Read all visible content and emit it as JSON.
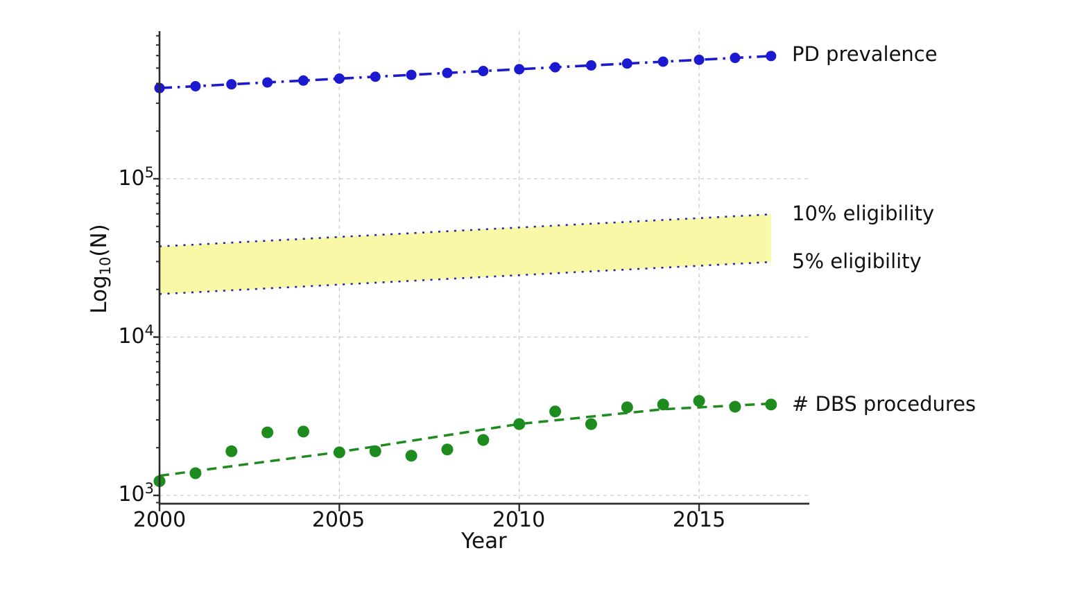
{
  "figure": {
    "x_axis_label": "Year",
    "y_axis_label": {
      "pre": "Log",
      "sub": "10",
      "post": "(N)"
    },
    "x_tick_labels": [
      "2000",
      "2005",
      "2010",
      "2015"
    ],
    "y_tick_labels": [
      {
        "base": "10",
        "exp": "5"
      },
      {
        "base": "10",
        "exp": "4"
      },
      {
        "base": "10",
        "exp": "3"
      }
    ],
    "annotations": {
      "pd": "PD prevalence",
      "elig10": "10% eligibility",
      "elig5": "5% eligibility",
      "dbs": "# DBS procedures"
    }
  },
  "colors": {
    "pd_line": "#1b1ad1",
    "band_fill": "#f8f8a6",
    "band_edge": "#24249c",
    "dbs_green": "#1e8b1e",
    "grid": "#c9c9c9",
    "axis": "#2b2b2b",
    "text": "#111111"
  },
  "chart_data": {
    "type": "line",
    "title": "",
    "xlabel": "Year",
    "ylabel": "Log10(N)",
    "y_scale": "log10",
    "xlim": [
      2000,
      2018.1
    ],
    "ylim": [
      880,
      850000
    ],
    "x_ticks": [
      2000,
      2005,
      2010,
      2015
    ],
    "y_ticks": [
      1000,
      10000,
      100000
    ],
    "grid": true,
    "legend_position": "right-margin-annotations",
    "x": [
      2000,
      2001,
      2002,
      2003,
      2004,
      2005,
      2006,
      2007,
      2008,
      2009,
      2010,
      2011,
      2012,
      2013,
      2014,
      2015,
      2016,
      2017
    ],
    "series": [
      {
        "name": "PD prevalence",
        "type": "line",
        "style": "dash-dot with circle markers",
        "color": "#1b1ad1",
        "values": [
          374000,
          384000,
          395000,
          406000,
          417000,
          429000,
          441000,
          453000,
          466000,
          479000,
          492000,
          506000,
          520000,
          534000,
          549000,
          564000,
          580000,
          596000
        ]
      },
      {
        "name": "10% eligibility",
        "type": "line",
        "style": "dotted, upper edge of shaded band",
        "color": "#24249c",
        "values": [
          37400,
          38400,
          39500,
          40600,
          41700,
          42900,
          44100,
          45300,
          46600,
          47900,
          49200,
          50600,
          52000,
          53400,
          54900,
          56400,
          58000,
          59600
        ]
      },
      {
        "name": "5% eligibility",
        "type": "line",
        "style": "dotted, lower edge of shaded band",
        "color": "#24249c",
        "values": [
          18700,
          19200,
          19750,
          20300,
          20850,
          21450,
          22050,
          22650,
          23300,
          23950,
          24600,
          25300,
          26000,
          26700,
          27450,
          28200,
          29000,
          29800
        ]
      },
      {
        "name": "# DBS procedures",
        "type": "scatter",
        "style": "circle markers",
        "color": "#1e8b1e",
        "values": [
          1230,
          1380,
          1900,
          2500,
          2530,
          1870,
          1900,
          1780,
          1950,
          2240,
          2820,
          3390,
          2820,
          3600,
          3750,
          3950,
          3630,
          3750
        ]
      },
      {
        "name": "DBS trend fit",
        "type": "line",
        "style": "dashed smooth fit",
        "color": "#1e8b1e",
        "anchors": [
          [
            2000,
            1330
          ],
          [
            2005,
            1880
          ],
          [
            2010,
            2825
          ],
          [
            2014,
            3500
          ],
          [
            2017,
            3800
          ]
        ]
      }
    ],
    "band": {
      "between": [
        "5% eligibility",
        "10% eligibility"
      ],
      "fill": "#f8f8a6"
    }
  }
}
